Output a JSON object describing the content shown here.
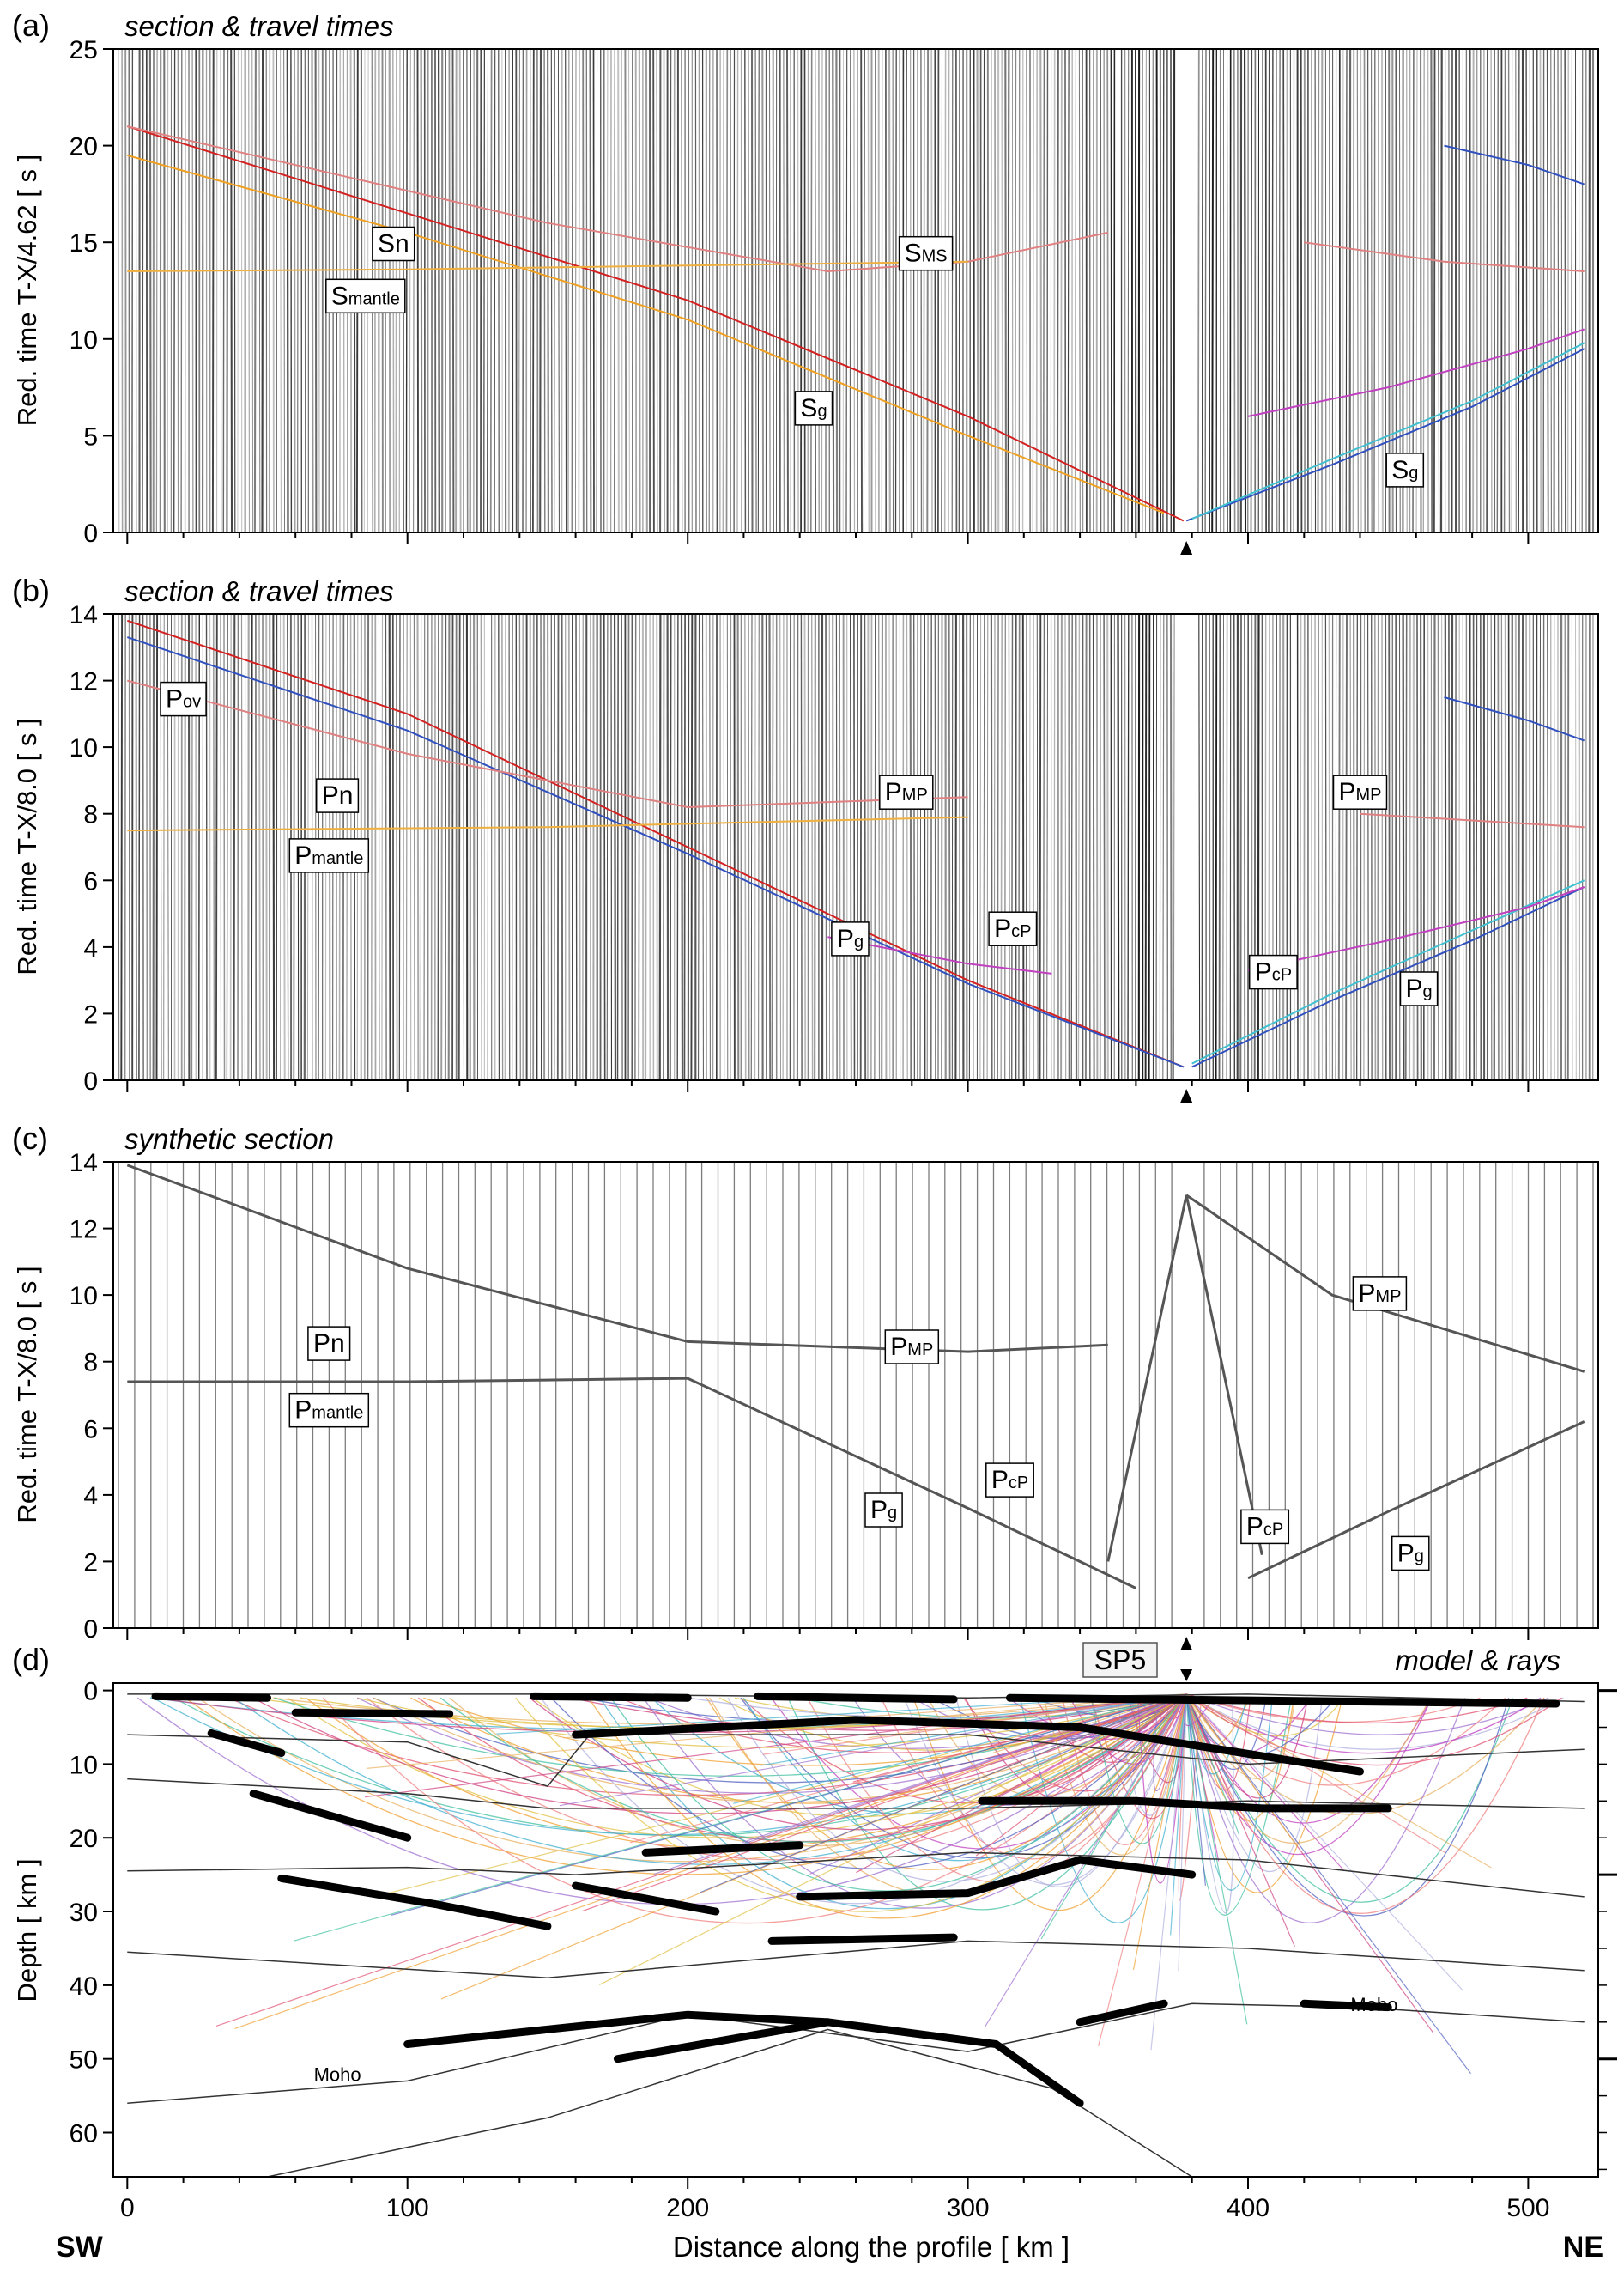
{
  "figure": {
    "x_axis_label": "Distance along the profile  [ km ]",
    "left_end_label": "SW",
    "right_end_label": "NE",
    "shot_point_label": "SP5",
    "shot_point_km": 378
  },
  "chart_data": [
    {
      "panel": "a",
      "letter": "(a)",
      "type": "line",
      "title": "section & travel times",
      "ylabel": "Red. time  T-X/4.62  [ s ]",
      "xlim": [
        -5,
        525
      ],
      "ylim": [
        0,
        25
      ],
      "yticks": [
        0,
        5,
        10,
        15,
        20,
        25
      ],
      "series": [
        {
          "color": "#d42020",
          "x": [
            0,
            100,
            200,
            300,
            377
          ],
          "y": [
            21,
            16.5,
            12,
            6,
            0.6
          ]
        },
        {
          "color": "#f0a020",
          "x": [
            0,
            100,
            200,
            300,
            370
          ],
          "y": [
            19.5,
            15.5,
            11,
            5,
            1
          ]
        },
        {
          "color": "#e08080",
          "x": [
            0,
            150,
            250,
            300,
            350
          ],
          "y": [
            21,
            16,
            13.5,
            14,
            15.5
          ]
        },
        {
          "color": "#f0b040",
          "x": [
            0,
            100,
            200,
            300
          ],
          "y": [
            13.5,
            13.6,
            13.8,
            14
          ]
        },
        {
          "color": "#3050c0",
          "x": [
            378,
            430,
            480,
            520
          ],
          "y": [
            0.6,
            3.5,
            6.5,
            9.5
          ]
        },
        {
          "color": "#40c0d0",
          "x": [
            380,
            430,
            480,
            520
          ],
          "y": [
            0.7,
            3.8,
            6.8,
            9.8
          ]
        },
        {
          "color": "#c040c0",
          "x": [
            400,
            450,
            500,
            520
          ],
          "y": [
            6,
            7.5,
            9.5,
            10.5
          ]
        },
        {
          "color": "#e08080",
          "x": [
            420,
            470,
            520
          ],
          "y": [
            15,
            14,
            13.5
          ]
        },
        {
          "color": "#3050c0",
          "x": [
            470,
            500,
            520
          ],
          "y": [
            20,
            19,
            18
          ]
        }
      ],
      "phase_labels": [
        {
          "main": "Sn",
          "sub": "",
          "x": 95,
          "y": 14.5
        },
        {
          "main": "S",
          "sub": "mantle",
          "x": 85,
          "y": 11.8
        },
        {
          "main": "S",
          "sub": "MS",
          "x": 285,
          "y": 14
        },
        {
          "main": "S",
          "sub": "g",
          "x": 245,
          "y": 6
        },
        {
          "main": "S",
          "sub": "g",
          "x": 456,
          "y": 2.8
        }
      ]
    },
    {
      "panel": "b",
      "letter": "(b)",
      "type": "line",
      "title": "section & travel times",
      "ylabel": "Red. time  T-X/8.0  [ s ]",
      "xlim": [
        -5,
        525
      ],
      "ylim": [
        0,
        14
      ],
      "yticks": [
        0,
        2,
        4,
        6,
        8,
        10,
        12,
        14
      ],
      "series": [
        {
          "color": "#d42020",
          "x": [
            0,
            100,
            200,
            300,
            377
          ],
          "y": [
            13.8,
            11,
            7,
            3,
            0.4
          ]
        },
        {
          "color": "#3050c0",
          "x": [
            0,
            100,
            200,
            300,
            377
          ],
          "y": [
            13.3,
            10.5,
            6.8,
            2.9,
            0.4
          ]
        },
        {
          "color": "#e08080",
          "x": [
            0,
            100,
            200,
            300
          ],
          "y": [
            12,
            9.8,
            8.2,
            8.5
          ]
        },
        {
          "color": "#f0b040",
          "x": [
            0,
            150,
            300
          ],
          "y": [
            7.5,
            7.6,
            7.9
          ]
        },
        {
          "color": "#c040c0",
          "x": [
            250,
            300,
            330
          ],
          "y": [
            4.3,
            3.5,
            3.2
          ]
        },
        {
          "color": "#3050c0",
          "x": [
            380,
            430,
            480,
            520
          ],
          "y": [
            0.4,
            2.4,
            4.2,
            5.8
          ]
        },
        {
          "color": "#40c0d0",
          "x": [
            380,
            430,
            480,
            520
          ],
          "y": [
            0.5,
            2.6,
            4.5,
            6.0
          ]
        },
        {
          "color": "#c040c0",
          "x": [
            400,
            450,
            500,
            520
          ],
          "y": [
            3.3,
            4.2,
            5.2,
            5.8
          ]
        },
        {
          "color": "#e08080",
          "x": [
            440,
            480,
            520
          ],
          "y": [
            8,
            7.8,
            7.6
          ]
        },
        {
          "color": "#3050c0",
          "x": [
            470,
            500,
            520
          ],
          "y": [
            11.5,
            10.8,
            10.2
          ]
        }
      ],
      "phase_labels": [
        {
          "main": "P",
          "sub": "ov",
          "x": 20,
          "y": 11.2
        },
        {
          "main": "Pn",
          "sub": "",
          "x": 75,
          "y": 8.3
        },
        {
          "main": "P",
          "sub": "mantle",
          "x": 72,
          "y": 6.5
        },
        {
          "main": "P",
          "sub": "MP",
          "x": 278,
          "y": 8.4
        },
        {
          "main": "P",
          "sub": "g",
          "x": 258,
          "y": 4.0
        },
        {
          "main": "P",
          "sub": "cP",
          "x": 316,
          "y": 4.3
        },
        {
          "main": "P",
          "sub": "MP",
          "x": 440,
          "y": 8.4
        },
        {
          "main": "P",
          "sub": "cP",
          "x": 409,
          "y": 3.0
        },
        {
          "main": "P",
          "sub": "g",
          "x": 461,
          "y": 2.5
        }
      ]
    },
    {
      "panel": "c",
      "letter": "(c)",
      "type": "line",
      "title": "synthetic section",
      "ylabel": "Red. time  T-X/8.0  [ s ]",
      "xlim": [
        -5,
        525
      ],
      "ylim": [
        0,
        14
      ],
      "yticks": [
        0,
        2,
        4,
        6,
        8,
        10,
        12,
        14
      ],
      "series": [
        {
          "color": "#555555",
          "x": [
            0,
            100,
            200,
            300,
            350
          ],
          "y": [
            13.9,
            10.8,
            8.6,
            8.3,
            8.5
          ]
        },
        {
          "color": "#555555",
          "x": [
            0,
            100,
            200,
            300,
            360
          ],
          "y": [
            7.4,
            7.4,
            7.5,
            3.6,
            1.2
          ]
        },
        {
          "color": "#555555",
          "x": [
            350,
            378,
            405
          ],
          "y": [
            2,
            13,
            2.2
          ]
        },
        {
          "color": "#555555",
          "x": [
            400,
            450,
            520
          ],
          "y": [
            1.5,
            3.5,
            6.2
          ]
        },
        {
          "color": "#555555",
          "x": [
            378,
            430,
            520
          ],
          "y": [
            13,
            10,
            7.7
          ]
        }
      ],
      "phase_labels": [
        {
          "main": "Pn",
          "sub": "",
          "x": 72,
          "y": 8.3
        },
        {
          "main": "P",
          "sub": "mantle",
          "x": 72,
          "y": 6.3
        },
        {
          "main": "P",
          "sub": "MP",
          "x": 280,
          "y": 8.2
        },
        {
          "main": "P",
          "sub": "g",
          "x": 270,
          "y": 3.3
        },
        {
          "main": "P",
          "sub": "cP",
          "x": 315,
          "y": 4.2
        },
        {
          "main": "P",
          "sub": "cP",
          "x": 406,
          "y": 2.8
        },
        {
          "main": "P",
          "sub": "MP",
          "x": 447,
          "y": 9.8
        },
        {
          "main": "P",
          "sub": "g",
          "x": 458,
          "y": 2.0
        }
      ]
    },
    {
      "panel": "d",
      "letter": "(d)",
      "type": "line",
      "title": "model & rays",
      "ylabel": "Depth  [ km ]",
      "xlim": [
        -5,
        525
      ],
      "ylim": [
        66,
        -1
      ],
      "yticks": [
        0,
        10,
        20,
        30,
        40,
        50,
        60
      ],
      "xticks": [
        0,
        100,
        200,
        300,
        400,
        500
      ],
      "interfaces": [
        {
          "x": [
            0,
            150,
            300,
            400,
            520
          ],
          "y": [
            0.5,
            0.5,
            1,
            0.5,
            1.5
          ]
        },
        {
          "x": [
            0,
            100,
            150,
            165,
            300,
            400,
            520
          ],
          "y": [
            6,
            7,
            13,
            6,
            6,
            10,
            8
          ]
        },
        {
          "x": [
            0,
            100,
            150,
            300,
            400,
            520
          ],
          "y": [
            12,
            14,
            16,
            16,
            15,
            16
          ]
        },
        {
          "x": [
            0,
            100,
            160,
            300,
            400,
            520
          ],
          "y": [
            24.5,
            24,
            25,
            22,
            23,
            28
          ]
        },
        {
          "x": [
            0,
            150,
            300,
            400,
            520
          ],
          "y": [
            35.5,
            39,
            34,
            35,
            38
          ]
        },
        {
          "x": [
            0,
            100,
            200,
            300,
            380,
            440,
            520
          ],
          "y": [
            56,
            53,
            44,
            49,
            42.5,
            43,
            45
          ]
        },
        {
          "x": [
            50,
            150,
            250,
            330,
            380
          ],
          "y": [
            66,
            58,
            46,
            54,
            66
          ]
        }
      ],
      "reflectors": [
        {
          "x": [
            10,
            50
          ],
          "y": [
            0.8,
            1
          ]
        },
        {
          "x": [
            60,
            115
          ],
          "y": [
            3,
            3.2
          ]
        },
        {
          "x": [
            145,
            200
          ],
          "y": [
            0.8,
            1
          ]
        },
        {
          "x": [
            225,
            295
          ],
          "y": [
            0.8,
            1.2
          ]
        },
        {
          "x": [
            315,
            510
          ],
          "y": [
            1,
            1.8
          ]
        },
        {
          "x": [
            30,
            55
          ],
          "y": [
            5.8,
            8.5
          ]
        },
        {
          "x": [
            160,
            260,
            340,
            440
          ],
          "y": [
            6,
            4,
            5,
            11
          ]
        },
        {
          "x": [
            45,
            100
          ],
          "y": [
            14,
            20
          ]
        },
        {
          "x": [
            305,
            360,
            405,
            450
          ],
          "y": [
            15,
            15,
            16,
            16
          ]
        },
        {
          "x": [
            185,
            240
          ],
          "y": [
            22,
            21
          ]
        },
        {
          "x": [
            240,
            300,
            340,
            380
          ],
          "y": [
            28,
            27.5,
            23,
            25
          ]
        },
        {
          "x": [
            160,
            210
          ],
          "y": [
            26.5,
            30
          ]
        },
        {
          "x": [
            230,
            295
          ],
          "y": [
            34,
            33.5
          ]
        },
        {
          "x": [
            55,
            110,
            150
          ],
          "y": [
            25.5,
            29,
            32
          ]
        },
        {
          "x": [
            340,
            370
          ],
          "y": [
            45,
            42.5
          ]
        },
        {
          "x": [
            420,
            450
          ],
          "y": [
            42.5,
            43
          ]
        },
        {
          "x": [
            100,
            200,
            250,
            310,
            340
          ],
          "y": [
            48,
            44,
            45,
            48,
            56
          ]
        },
        {
          "x": [
            175,
            250
          ],
          "y": [
            50,
            45
          ]
        }
      ],
      "annotations": [
        {
          "text": "Moho",
          "x": 75,
          "y": 53
        },
        {
          "text": "Moho",
          "x": 445,
          "y": 43.5
        }
      ]
    }
  ]
}
